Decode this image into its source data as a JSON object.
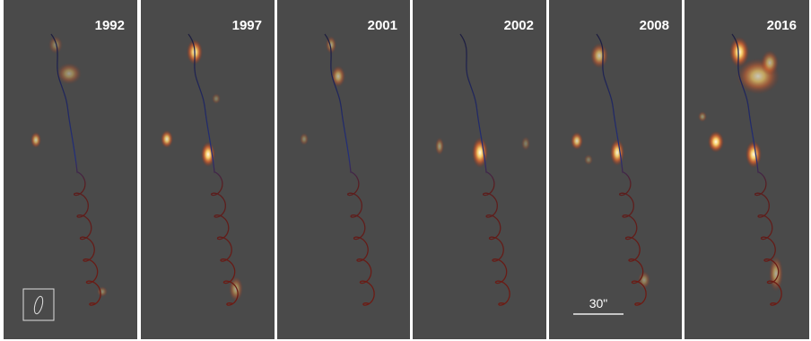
{
  "panels": [
    {
      "year": "1992"
    },
    {
      "year": "1997"
    },
    {
      "year": "2001"
    },
    {
      "year": "2002"
    },
    {
      "year": "2008"
    },
    {
      "year": "2016"
    }
  ],
  "scale_bar": {
    "label": "30\""
  }
}
